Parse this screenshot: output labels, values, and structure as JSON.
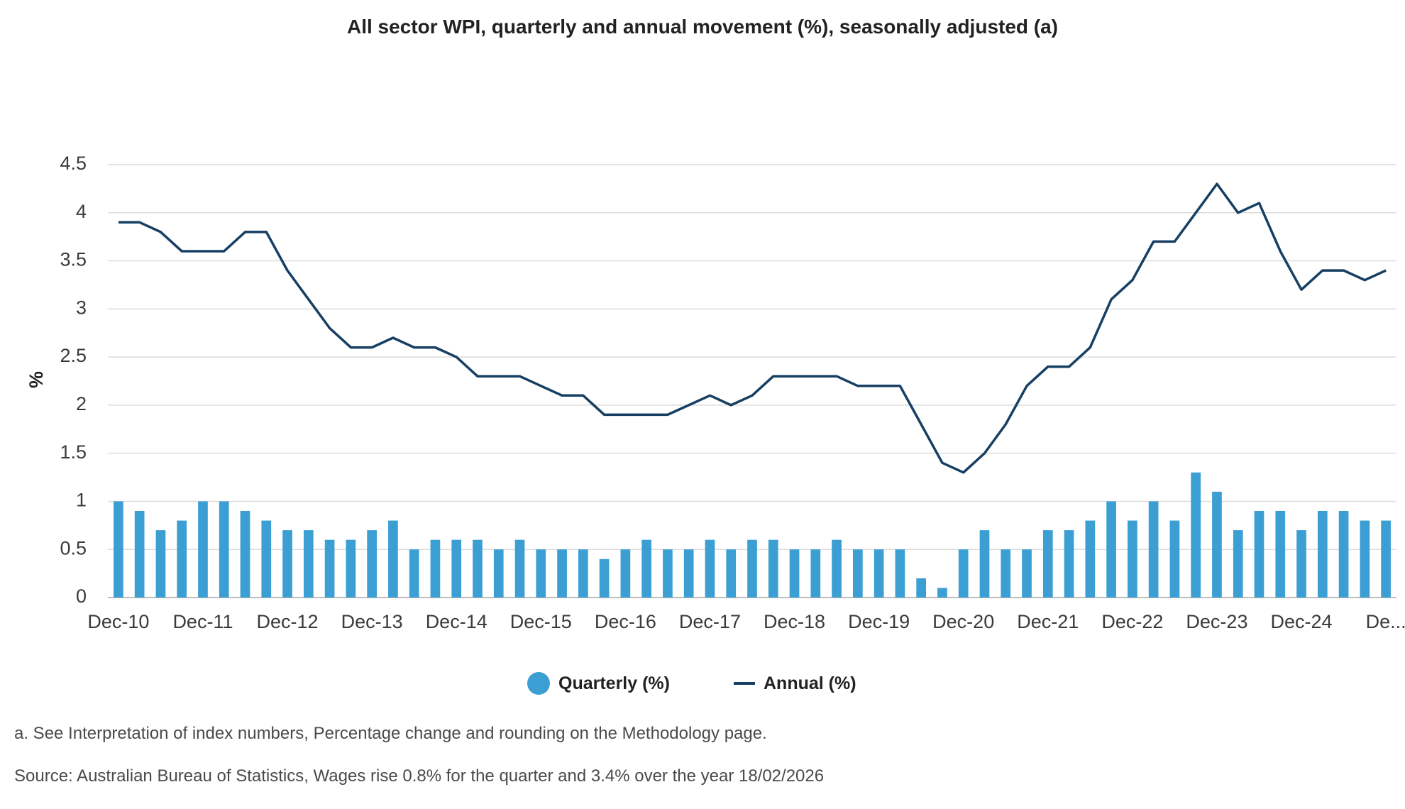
{
  "chart_data": {
    "type": "bar",
    "title": "All sector WPI, quarterly and annual movement (%), seasonally adjusted (a)",
    "ylabel": "%",
    "ylim": [
      0,
      4.5
    ],
    "yticks": [
      "0",
      "0.5",
      "1",
      "1.5",
      "2",
      "2.5",
      "3",
      "3.5",
      "4",
      "4.5"
    ],
    "grid": true,
    "legend_position": "bottom",
    "x_tick_labels": [
      "Dec-10",
      "Dec-11",
      "Dec-12",
      "Dec-13",
      "Dec-14",
      "Dec-15",
      "Dec-16",
      "Dec-17",
      "Dec-18",
      "Dec-19",
      "Dec-20",
      "Dec-21",
      "Dec-22",
      "Dec-23",
      "Dec-24",
      "De..."
    ],
    "x_tick_every": 4,
    "colors": {
      "quarterly": "#3b9fd4",
      "annual": "#163f63",
      "grid": "#dcdcdc",
      "axis": "#bdbdbd"
    },
    "series": [
      {
        "name": "Quarterly (%)",
        "kind": "bar",
        "values": [
          1.0,
          0.9,
          0.7,
          0.8,
          1.0,
          1.0,
          0.9,
          0.8,
          0.7,
          0.7,
          0.6,
          0.6,
          0.7,
          0.8,
          0.5,
          0.6,
          0.6,
          0.6,
          0.5,
          0.6,
          0.5,
          0.5,
          0.5,
          0.4,
          0.5,
          0.6,
          0.5,
          0.5,
          0.6,
          0.5,
          0.6,
          0.6,
          0.5,
          0.5,
          0.6,
          0.5,
          0.5,
          0.5,
          0.2,
          0.1,
          0.5,
          0.7,
          0.5,
          0.5,
          0.7,
          0.7,
          0.8,
          1.0,
          0.8,
          1.0,
          0.8,
          1.3,
          1.1,
          0.7,
          0.9,
          0.9,
          0.7,
          0.9,
          0.9,
          0.8,
          0.8
        ]
      },
      {
        "name": "Annual (%)",
        "kind": "line",
        "values": [
          3.9,
          3.9,
          3.8,
          3.6,
          3.6,
          3.6,
          3.8,
          3.8,
          3.4,
          3.1,
          2.8,
          2.6,
          2.6,
          2.7,
          2.6,
          2.6,
          2.5,
          2.3,
          2.3,
          2.3,
          2.2,
          2.1,
          2.1,
          1.9,
          1.9,
          1.9,
          1.9,
          2.0,
          2.1,
          2.0,
          2.1,
          2.3,
          2.3,
          2.3,
          2.3,
          2.2,
          2.2,
          2.2,
          1.8,
          1.4,
          1.3,
          1.5,
          1.8,
          2.2,
          2.4,
          2.4,
          2.6,
          3.1,
          3.3,
          3.7,
          3.7,
          4.0,
          4.3,
          4.0,
          4.1,
          3.6,
          3.2,
          3.4,
          3.4,
          3.3,
          3.4
        ]
      }
    ]
  },
  "legend": {
    "quarterly_label": "Quarterly (%)",
    "annual_label": "Annual (%)"
  },
  "footnote": "a. See Interpretation of index numbers, Percentage change and rounding on the Methodology page.",
  "source": "Source: Australian Bureau of Statistics, Wages rise 0.8% for the quarter and 3.4% over the year 18/02/2026"
}
